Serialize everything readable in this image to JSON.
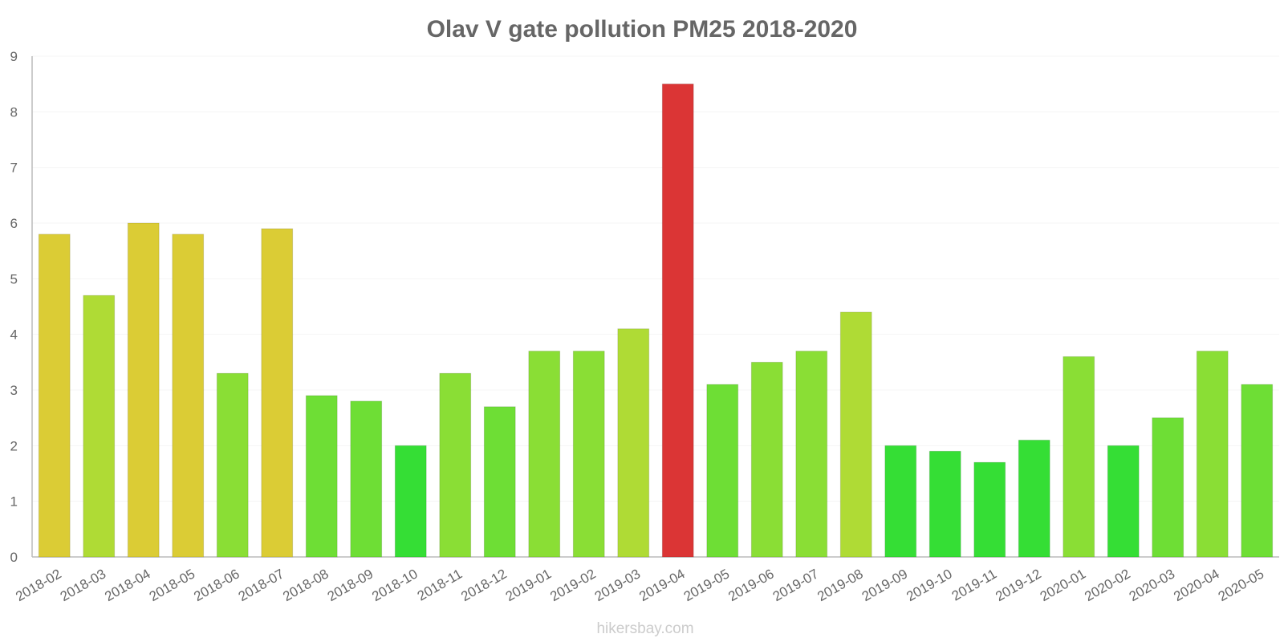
{
  "chart_data": {
    "type": "bar",
    "title": "Olav V gate pollution PM25 2018-2020",
    "xlabel": "",
    "ylabel": "",
    "ylim": [
      0,
      9
    ],
    "yticks": [
      0,
      1,
      2,
      3,
      4,
      5,
      6,
      7,
      8,
      9
    ],
    "categories": [
      "2018-02",
      "2018-03",
      "2018-04",
      "2018-05",
      "2018-06",
      "2018-07",
      "2018-08",
      "2018-09",
      "2018-10",
      "2018-11",
      "2018-12",
      "2019-01",
      "2019-02",
      "2019-03",
      "2019-04",
      "2019-05",
      "2019-06",
      "2019-07",
      "2019-08",
      "2019-09",
      "2019-10",
      "2019-11",
      "2019-12",
      "2020-01",
      "2020-02",
      "2020-03",
      "2020-04",
      "2020-05"
    ],
    "values": [
      5.8,
      4.7,
      6.0,
      5.8,
      3.3,
      5.9,
      2.9,
      2.8,
      2.0,
      3.3,
      2.7,
      3.7,
      3.7,
      4.1,
      8.5,
      3.1,
      3.5,
      3.7,
      4.4,
      2.0,
      1.9,
      1.7,
      2.1,
      3.6,
      2.0,
      2.5,
      3.7,
      3.1
    ],
    "colors": [
      "#dbcc35",
      "#afdb35",
      "#dbcc35",
      "#dbcc35",
      "#8ade35",
      "#dbcc35",
      "#6ede35",
      "#6ede35",
      "#35de35",
      "#8ade35",
      "#6ede35",
      "#8ade35",
      "#8ade35",
      "#afdb35",
      "#db3535",
      "#6ede35",
      "#8ade35",
      "#8ade35",
      "#afdb35",
      "#35de35",
      "#35de35",
      "#35de35",
      "#35de35",
      "#8ade35",
      "#35de35",
      "#6ede35",
      "#8ade35",
      "#6ede35"
    ],
    "grid": true,
    "legend": "none"
  },
  "footer": {
    "watermark": "hikersbay.com"
  }
}
